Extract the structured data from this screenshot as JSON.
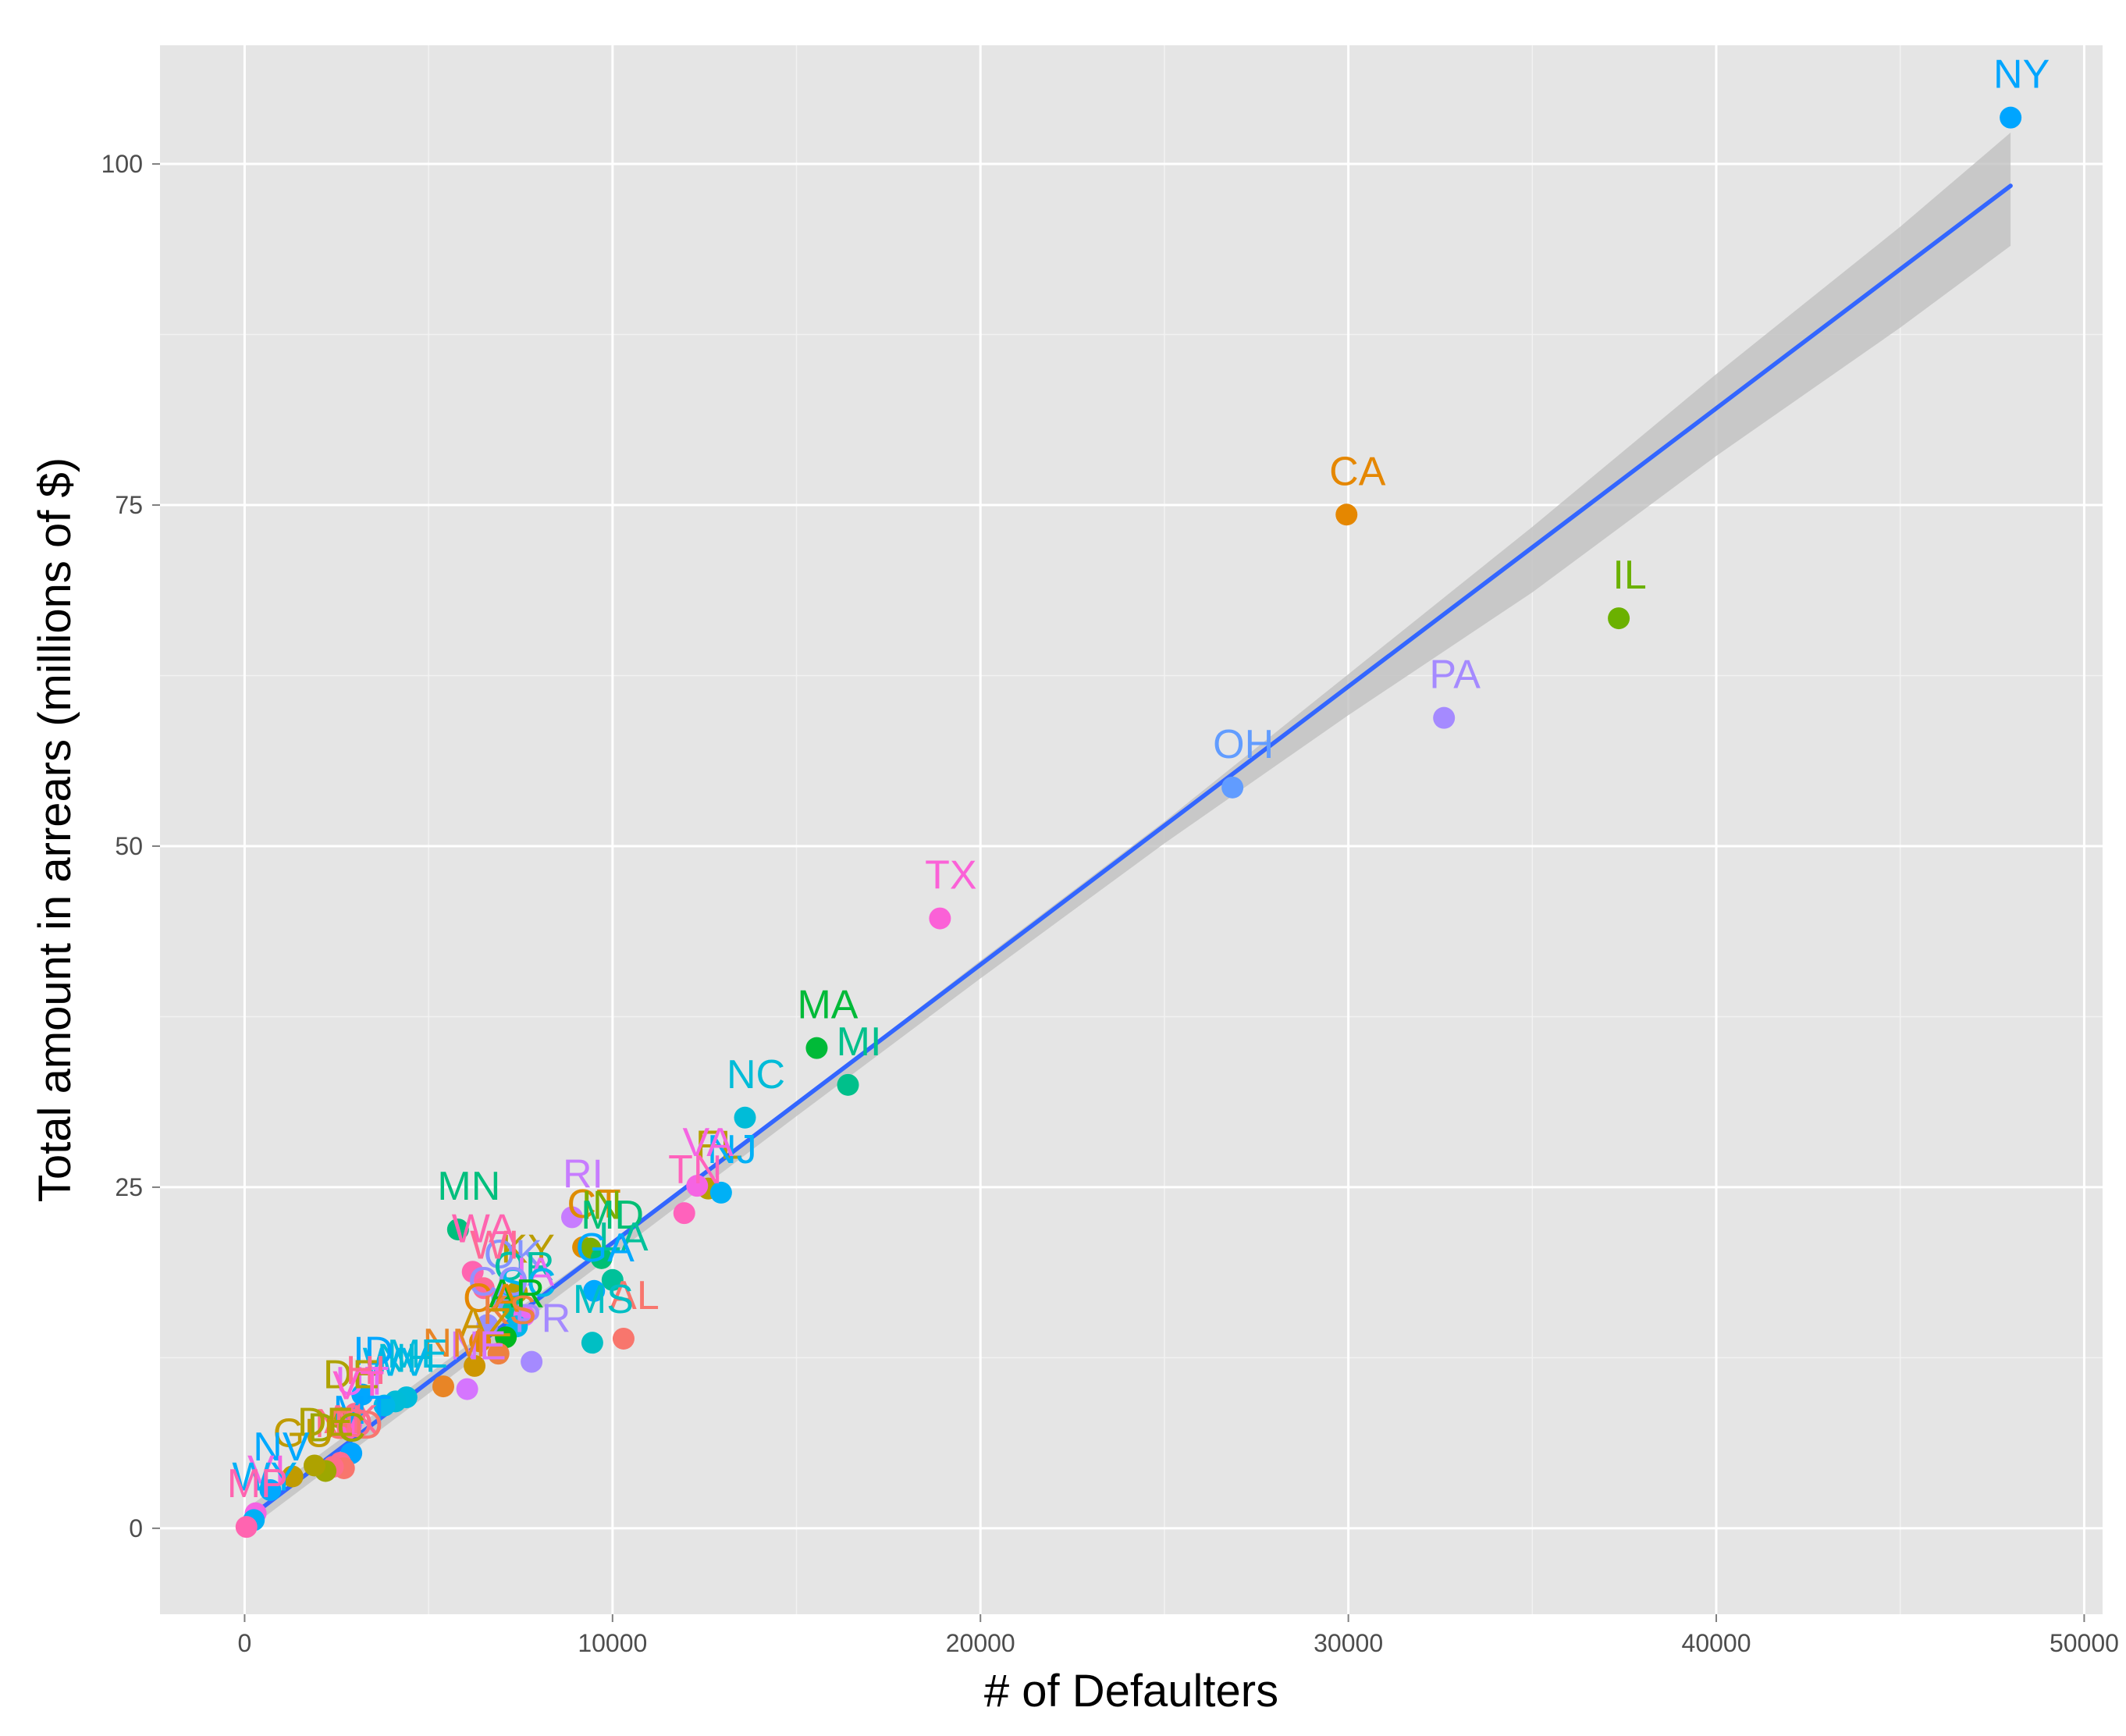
{
  "chart_data": {
    "type": "scatter",
    "title": "",
    "xlabel": "# of Defaulters",
    "ylabel": "Total amount in arrears (millions of $)",
    "xlim": [
      -2300,
      50500
    ],
    "ylim": [
      -6.3,
      108.7
    ],
    "x_ticks": [
      0,
      10000,
      20000,
      30000,
      40000,
      50000
    ],
    "x_tick_labels": [
      "0",
      "10000",
      "20000",
      "30000",
      "40000",
      "50000"
    ],
    "y_ticks": [
      0,
      25,
      50,
      75,
      100
    ],
    "y_tick_labels": [
      "0",
      "25",
      "50",
      "75",
      "100"
    ],
    "grid": true,
    "legend": "none",
    "background": "#e5e5e5",
    "trend": {
      "type": "linear fit with confidence band",
      "color": "#3366ff",
      "band_color": "#bdbdbd",
      "line": [
        [
          130,
          0.8
        ],
        [
          48000,
          98.4
        ]
      ],
      "band_upper": [
        [
          130,
          1.6
        ],
        [
          6000,
          13.3
        ],
        [
          10000,
          21.1
        ],
        [
          15000,
          31.2
        ],
        [
          20000,
          41.6
        ],
        [
          25000,
          51.8
        ],
        [
          30000,
          62.6
        ],
        [
          35000,
          73.4
        ],
        [
          40000,
          84.6
        ],
        [
          45000,
          95.4
        ],
        [
          48000,
          102.3
        ]
      ],
      "band_lower": [
        [
          48000,
          94.0
        ],
        [
          45000,
          88.0
        ],
        [
          40000,
          78.6
        ],
        [
          35000,
          68.6
        ],
        [
          30000,
          59.6
        ],
        [
          25000,
          50.2
        ],
        [
          20000,
          40.3
        ],
        [
          15000,
          30.2
        ],
        [
          10000,
          20.0
        ],
        [
          6000,
          11.9
        ],
        [
          130,
          0.0
        ]
      ]
    },
    "points": [
      {
        "label": "NY",
        "x": 48000,
        "y": 103.4,
        "color": "#00a5ff"
      },
      {
        "label": "CA",
        "x": 29950,
        "y": 74.3,
        "color": "#e58700"
      },
      {
        "label": "IL",
        "x": 37350,
        "y": 66.7,
        "color": "#6bb100"
      },
      {
        "label": "PA",
        "x": 32600,
        "y": 59.4,
        "color": "#a58aff"
      },
      {
        "label": "OH",
        "x": 26850,
        "y": 54.3,
        "color": "#619cff"
      },
      {
        "label": "TX",
        "x": 18900,
        "y": 44.7,
        "color": "#fb61d7"
      },
      {
        "label": "MA",
        "x": 15550,
        "y": 35.2,
        "color": "#00ba38"
      },
      {
        "label": "MI",
        "x": 16400,
        "y": 32.5,
        "color": "#00c08b"
      },
      {
        "label": "NC",
        "x": 13600,
        "y": 30.1,
        "color": "#00bcd8"
      },
      {
        "label": "FL",
        "x": 12600,
        "y": 24.9,
        "color": "#b79f00"
      },
      {
        "label": "NJ",
        "x": 12950,
        "y": 24.6,
        "color": "#00b0f6"
      },
      {
        "label": "VA",
        "x": 12300,
        "y": 25.1,
        "color": "#f564e3"
      },
      {
        "label": "MN",
        "x": 5800,
        "y": 21.9,
        "color": "#00bf7d"
      },
      {
        "label": "RI",
        "x": 8900,
        "y": 22.8,
        "color": "#c77cff"
      },
      {
        "label": "CT",
        "x": 9200,
        "y": 20.6,
        "color": "#de8c00"
      },
      {
        "label": "TN",
        "x": 11950,
        "y": 23.1,
        "color": "#ff62bc"
      },
      {
        "label": "WA",
        "x": 6200,
        "y": 18.8,
        "color": "#ff64b0"
      },
      {
        "label": "IN",
        "x": 9400,
        "y": 20.5,
        "color": "#7cae00"
      },
      {
        "label": "MD",
        "x": 9700,
        "y": 19.8,
        "color": "#00bf74"
      },
      {
        "label": "LA",
        "x": 10000,
        "y": 18.2,
        "color": "#00c19a"
      },
      {
        "label": "GA",
        "x": 9500,
        "y": 17.4,
        "color": "#00a9ff"
      },
      {
        "label": "AL",
        "x": 10300,
        "y": 13.9,
        "color": "#f8766d"
      },
      {
        "label": "MS",
        "x": 9450,
        "y": 13.6,
        "color": "#00bfc4"
      },
      {
        "label": "KY",
        "x": 7400,
        "y": 17.3,
        "color": "#bb9d00"
      },
      {
        "label": "OK",
        "x": 7000,
        "y": 16.9,
        "color": "#8494ff"
      },
      {
        "label": "OR",
        "x": 7300,
        "y": 16.0,
        "color": "#00c1a3"
      },
      {
        "label": "IA",
        "x": 7600,
        "y": 15.6,
        "color": "#e76bf3"
      },
      {
        "label": "SC",
        "x": 7400,
        "y": 14.8,
        "color": "#00b6eb"
      },
      {
        "label": "PR",
        "x": 7800,
        "y": 12.2,
        "color": "#a58aff"
      },
      {
        "label": "CO",
        "x": 6600,
        "y": 14.9,
        "color": "#9590ff"
      },
      {
        "label": "WI",
        "x": 6500,
        "y": 17.6,
        "color": "#ff6a98"
      },
      {
        "label": "AR",
        "x": 7100,
        "y": 14.0,
        "color": "#00b81f"
      },
      {
        "label": "CA",
        "x": 6400,
        "y": 13.7,
        "color": "#e58700"
      },
      {
        "label": "KS",
        "x": 6900,
        "y": 12.8,
        "color": "#ed8141"
      },
      {
        "label": "AZ",
        "x": 6250,
        "y": 11.9,
        "color": "#cd9600"
      },
      {
        "label": "NE",
        "x": 6050,
        "y": 10.2,
        "color": "#d575fe"
      },
      {
        "label": "NM",
        "x": 5400,
        "y": 10.4,
        "color": "#e88526"
      },
      {
        "label": "ME",
        "x": 4400,
        "y": 9.6,
        "color": "#00bbdb"
      },
      {
        "label": "NH",
        "x": 4100,
        "y": 9.3,
        "color": "#00bcd8"
      },
      {
        "label": "WV",
        "x": 3800,
        "y": 9.0,
        "color": "#00b7e9"
      },
      {
        "label": "ID",
        "x": 3200,
        "y": 9.8,
        "color": "#00a7ff"
      },
      {
        "label": "UT",
        "x": 2900,
        "y": 7.6,
        "color": "#e76bf3"
      },
      {
        "label": "DE",
        "x": 2600,
        "y": 8.1,
        "color": "#aea200"
      },
      {
        "label": "HI",
        "x": 3000,
        "y": 8.4,
        "color": "#ff6c91"
      },
      {
        "label": "VT",
        "x": 2800,
        "y": 7.3,
        "color": "#fd61d1"
      },
      {
        "label": "MT",
        "x": 2900,
        "y": 5.5,
        "color": "#00a5ff"
      },
      {
        "label": "AK",
        "x": 2600,
        "y": 4.8,
        "color": "#ff6c91"
      },
      {
        "label": "SD",
        "x": 2700,
        "y": 4.4,
        "color": "#f8766d"
      },
      {
        "label": "ND",
        "x": 2400,
        "y": 4.5,
        "color": "#fe6e8a"
      },
      {
        "label": "DC",
        "x": 2200,
        "y": 4.2,
        "color": "#9da700"
      },
      {
        "label": "DE",
        "x": 1900,
        "y": 4.6,
        "color": "#aea200"
      },
      {
        "label": "GU",
        "x": 1300,
        "y": 3.8,
        "color": "#c09b00"
      },
      {
        "label": "NV",
        "x": 700,
        "y": 2.8,
        "color": "#00a9ff"
      },
      {
        "label": "VI",
        "x": 300,
        "y": 1.1,
        "color": "#f564e3"
      },
      {
        "label": "WY",
        "x": 250,
        "y": 0.6,
        "color": "#00b0f6"
      },
      {
        "label": "MP",
        "x": 50,
        "y": 0.1,
        "color": "#ff64b0"
      }
    ],
    "labels_drawn": [
      {
        "text": "NY",
        "x": 48000,
        "y": 103.4,
        "color": "#00a5ff"
      },
      {
        "text": "CA",
        "x": 29950,
        "y": 74.3,
        "color": "#e58700"
      },
      {
        "text": "IL",
        "x": 37350,
        "y": 66.7,
        "color": "#6bb100"
      },
      {
        "text": "PA",
        "x": 32600,
        "y": 59.4,
        "color": "#a58aff"
      },
      {
        "text": "OH",
        "x": 26850,
        "y": 54.3,
        "color": "#619cff"
      },
      {
        "text": "TX",
        "x": 18900,
        "y": 44.7,
        "color": "#fb61d7"
      },
      {
        "text": "MA",
        "x": 15550,
        "y": 35.2,
        "color": "#00ba38"
      },
      {
        "text": "MI",
        "x": 16400,
        "y": 32.5,
        "color": "#00c08b"
      },
      {
        "text": "NC",
        "x": 13600,
        "y": 30.1,
        "color": "#00bcd8"
      },
      {
        "text": "FL",
        "x": 12600,
        "y": 24.9,
        "color": "#b79f00"
      },
      {
        "text": "NJ",
        "x": 12950,
        "y": 24.6,
        "color": "#00b0f6"
      },
      {
        "text": "VA",
        "x": 12300,
        "y": 25.1,
        "color": "#f564e3"
      },
      {
        "text": "MN",
        "x": 5800,
        "y": 21.9,
        "color": "#00bf7d"
      },
      {
        "text": "RI",
        "x": 8900,
        "y": 22.8,
        "color": "#c77cff"
      },
      {
        "text": "CT",
        "x": 9200,
        "y": 20.6,
        "color": "#de8c00"
      },
      {
        "text": "TN",
        "x": 11950,
        "y": 23.1,
        "color": "#ff62bc"
      },
      {
        "text": "WA",
        "x": 6200,
        "y": 18.8,
        "color": "#ff64b0"
      },
      {
        "text": "IN",
        "x": 9400,
        "y": 20.5,
        "color": "#7cae00"
      },
      {
        "text": "MD",
        "x": 9700,
        "y": 19.8,
        "color": "#00bf74"
      },
      {
        "text": "LA",
        "x": 10000,
        "y": 18.2,
        "color": "#00c19a"
      },
      {
        "text": "GA",
        "x": 9500,
        "y": 17.4,
        "color": "#00a9ff"
      },
      {
        "text": "AL",
        "x": 10300,
        "y": 13.9,
        "color": "#f8766d"
      },
      {
        "text": "MS",
        "x": 9450,
        "y": 13.6,
        "color": "#00bfc4"
      },
      {
        "text": "KY",
        "x": 7400,
        "y": 17.3,
        "color": "#bb9d00"
      },
      {
        "text": "OK",
        "x": 7000,
        "y": 16.9,
        "color": "#8494ff"
      },
      {
        "text": "OR",
        "x": 7300,
        "y": 16.0,
        "color": "#00c1a3"
      },
      {
        "text": "IA",
        "x": 7600,
        "y": 15.6,
        "color": "#e76bf3"
      },
      {
        "text": "SC",
        "x": 7400,
        "y": 14.8,
        "color": "#00b6eb"
      },
      {
        "text": "PR",
        "x": 7800,
        "y": 12.2,
        "color": "#a58aff"
      },
      {
        "text": "CO",
        "x": 6600,
        "y": 14.9,
        "color": "#9590ff"
      },
      {
        "text": "WI",
        "x": 6500,
        "y": 17.6,
        "color": "#ff6a98"
      },
      {
        "text": "AR",
        "x": 7100,
        "y": 14.0,
        "color": "#00b81f"
      },
      {
        "text": "CA",
        "x": 6400,
        "y": 13.7,
        "color": "#e58700"
      },
      {
        "text": "KS",
        "x": 6900,
        "y": 12.8,
        "color": "#ed8141"
      },
      {
        "text": "AZ",
        "x": 6250,
        "y": 11.9,
        "color": "#cd9600"
      },
      {
        "text": "NE",
        "x": 6050,
        "y": 10.2,
        "color": "#d575fe"
      },
      {
        "text": "NM",
        "x": 5400,
        "y": 10.4,
        "color": "#e88526"
      },
      {
        "text": "ME",
        "x": 4400,
        "y": 9.6,
        "color": "#00bbdb"
      },
      {
        "text": "NH",
        "x": 4100,
        "y": 9.3,
        "color": "#00bcd8"
      },
      {
        "text": "WV",
        "x": 3800,
        "y": 9.0,
        "color": "#00b7e9"
      },
      {
        "text": "ID",
        "x": 3200,
        "y": 9.8,
        "color": "#00a7ff"
      },
      {
        "text": "UT",
        "x": 2900,
        "y": 7.6,
        "color": "#e76bf3"
      },
      {
        "text": "DE",
        "x": 2600,
        "y": 8.1,
        "color": "#aea200"
      },
      {
        "text": "HI",
        "x": 3000,
        "y": 8.4,
        "color": "#ff6c91"
      },
      {
        "text": "VT",
        "x": 2800,
        "y": 7.3,
        "color": "#fd61d1"
      },
      {
        "text": "MT",
        "x": 2900,
        "y": 5.5,
        "color": "#00a5ff"
      },
      {
        "text": "AK",
        "x": 2600,
        "y": 4.8,
        "color": "#ff6c91"
      },
      {
        "text": "SD",
        "x": 2700,
        "y": 4.4,
        "color": "#f8766d"
      },
      {
        "text": "ND",
        "x": 2400,
        "y": 4.5,
        "color": "#fe6e8a"
      },
      {
        "text": "DC",
        "x": 2200,
        "y": 4.2,
        "color": "#9da700"
      },
      {
        "text": "DE",
        "x": 1900,
        "y": 4.6,
        "color": "#aea200"
      },
      {
        "text": "GU",
        "x": 1300,
        "y": 3.8,
        "color": "#c09b00"
      },
      {
        "text": "NV",
        "x": 700,
        "y": 2.8,
        "color": "#00a9ff"
      },
      {
        "text": "VI",
        "x": 300,
        "y": 1.1,
        "color": "#f564e3"
      },
      {
        "text": "WY",
        "x": 250,
        "y": 0.6,
        "color": "#00b0f6"
      },
      {
        "text": "MP",
        "x": 50,
        "y": 0.1,
        "color": "#ff64b0"
      }
    ]
  }
}
